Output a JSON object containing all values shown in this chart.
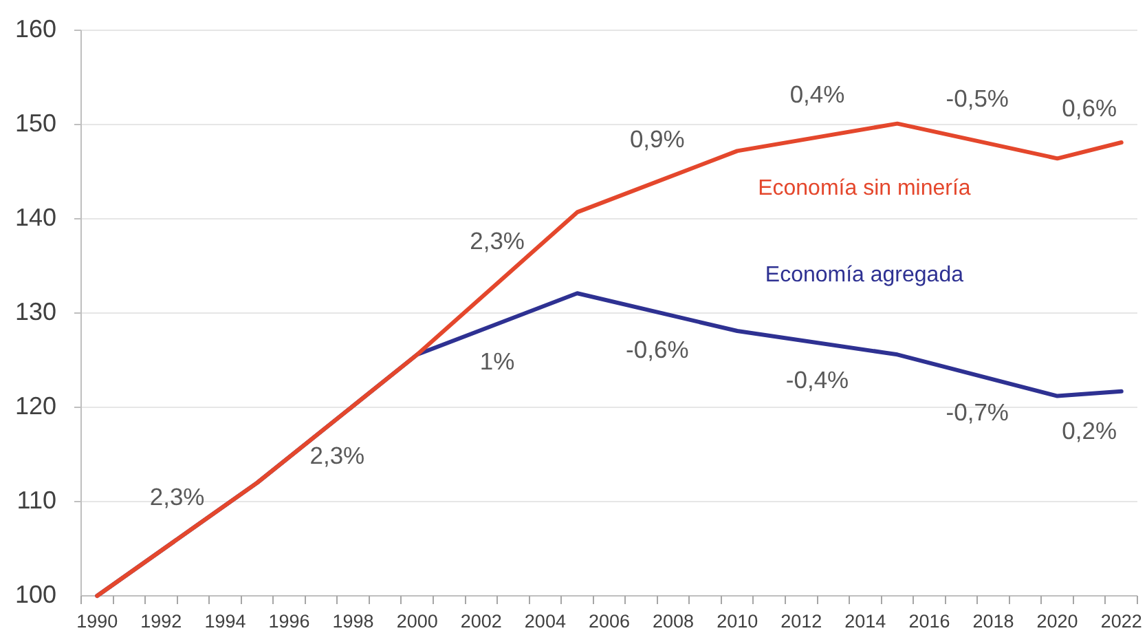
{
  "chart_data": {
    "type": "line",
    "x": [
      1990,
      1995,
      2000,
      2005,
      2010,
      2015,
      2020,
      2022
    ],
    "xlim": [
      1989.5,
      2022.5
    ],
    "xticks": [
      {
        "value": 1989.5,
        "label": null
      },
      1990,
      {
        "value": 1990.5,
        "label": null
      },
      {
        "value": 1991.5,
        "label": null
      },
      1992,
      {
        "value": 1992.5,
        "label": null
      },
      {
        "value": 1993.5,
        "label": null
      },
      1994,
      {
        "value": 1994.5,
        "label": null
      },
      {
        "value": 1995.5,
        "label": null
      },
      1996,
      {
        "value": 1996.5,
        "label": null
      },
      {
        "value": 1997.5,
        "label": null
      },
      1998,
      {
        "value": 1998.5,
        "label": null
      },
      {
        "value": 1999.5,
        "label": null
      },
      2000,
      {
        "value": 2000.5,
        "label": null
      },
      {
        "value": 2001.5,
        "label": null
      },
      2002,
      {
        "value": 2002.5,
        "label": null
      },
      {
        "value": 2003.5,
        "label": null
      },
      2004,
      {
        "value": 2004.5,
        "label": null
      },
      {
        "value": 2005.5,
        "label": null
      },
      2006,
      {
        "value": 2006.5,
        "label": null
      },
      {
        "value": 2007.5,
        "label": null
      },
      2008,
      {
        "value": 2008.5,
        "label": null
      },
      {
        "value": 2009.5,
        "label": null
      },
      2010,
      {
        "value": 2010.5,
        "label": null
      },
      {
        "value": 2011.5,
        "label": null
      },
      2012,
      {
        "value": 2012.5,
        "label": null
      },
      {
        "value": 2013.5,
        "label": null
      },
      2014,
      {
        "value": 2014.5,
        "label": null
      },
      {
        "value": 2015.5,
        "label": null
      },
      2016,
      {
        "value": 2016.5,
        "label": null
      },
      {
        "value": 2017.5,
        "label": null
      },
      2018,
      {
        "value": 2018.5,
        "label": null
      },
      {
        "value": 2019.5,
        "label": null
      },
      2020,
      {
        "value": 2020.5,
        "label": null
      },
      {
        "value": 2021.5,
        "label": null
      },
      2022,
      {
        "value": 2022.5,
        "label": null
      }
    ],
    "ylim": [
      100,
      160
    ],
    "yticks": [
      100,
      110,
      120,
      130,
      140,
      150,
      160
    ],
    "grid": "y",
    "series": [
      {
        "name": "Economía agregada",
        "color": "#2e3192",
        "values": [
          100,
          112,
          125.6,
          132.1,
          128.1,
          125.6,
          121.2,
          121.7
        ]
      },
      {
        "name": "Economía sin minería",
        "color": "#e4472c",
        "values": [
          100,
          112,
          125.6,
          140.7,
          147.2,
          150.1,
          146.4,
          148.1
        ]
      }
    ],
    "annotations": [
      "2,3%",
      "2,3%",
      "1%",
      "2,3%",
      "-0,6%",
      "0,9%",
      "-0,4%",
      "0,4%",
      "-0,7%",
      "-0,5%",
      "0,2%",
      "0,6%"
    ]
  }
}
